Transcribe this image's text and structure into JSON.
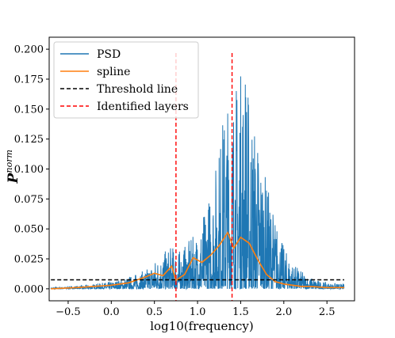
{
  "chart_data": {
    "type": "line",
    "xlabel": "log10(frequency)",
    "ylabel_main": "P",
    "ylabel_sup": "norm",
    "xlim": [
      -0.72,
      2.82
    ],
    "ylim": [
      -0.01,
      0.21
    ],
    "xticks": [
      -0.5,
      0.0,
      0.5,
      1.0,
      1.5,
      2.0,
      2.5
    ],
    "xtick_labels": [
      "−0.5",
      "0.0",
      "0.5",
      "1.0",
      "1.5",
      "2.0",
      "2.5"
    ],
    "yticks": [
      0.0,
      0.025,
      0.05,
      0.075,
      0.1,
      0.125,
      0.15,
      0.175,
      0.2
    ],
    "ytick_labels": [
      "0.000",
      "0.025",
      "0.050",
      "0.075",
      "0.100",
      "0.125",
      "0.150",
      "0.175",
      "0.200"
    ],
    "grid": false,
    "legend_position": "top-left",
    "colors": {
      "psd": "#1f77b4",
      "spline": "#ff7f0e",
      "threshold": "#000000",
      "layers": "#ff0000"
    },
    "series": [
      {
        "name": "PSD",
        "style": "solid",
        "color": "#1f77b4",
        "envelope": {
          "x": [
            -0.7,
            -0.3,
            0.0,
            0.2,
            0.4,
            0.5,
            0.6,
            0.7,
            0.8,
            0.9,
            1.0,
            1.1,
            1.2,
            1.3,
            1.4,
            1.5,
            1.55,
            1.6,
            1.7,
            1.8,
            1.9,
            2.0,
            2.1,
            2.2,
            2.3,
            2.4,
            2.5,
            2.7
          ],
          "y": [
            0.001,
            0.003,
            0.006,
            0.01,
            0.016,
            0.024,
            0.03,
            0.036,
            0.032,
            0.04,
            0.048,
            0.07,
            0.1,
            0.15,
            0.17,
            0.185,
            0.205,
            0.16,
            0.13,
            0.09,
            0.06,
            0.035,
            0.022,
            0.015,
            0.01,
            0.007,
            0.005,
            0.004
          ]
        }
      },
      {
        "name": "spline",
        "style": "solid",
        "color": "#ff7f0e",
        "x": [
          -0.7,
          -0.4,
          -0.2,
          0.0,
          0.2,
          0.4,
          0.5,
          0.6,
          0.7,
          0.75,
          0.85,
          0.95,
          1.05,
          1.15,
          1.25,
          1.35,
          1.42,
          1.5,
          1.6,
          1.7,
          1.8,
          1.9,
          2.0,
          2.1,
          2.2,
          2.3,
          2.5,
          2.7
        ],
        "y": [
          0.0,
          0.001,
          0.002,
          0.003,
          0.005,
          0.01,
          0.013,
          0.011,
          0.019,
          0.007,
          0.012,
          0.026,
          0.022,
          0.028,
          0.036,
          0.047,
          0.034,
          0.043,
          0.038,
          0.024,
          0.012,
          0.006,
          0.004,
          0.003,
          0.002,
          0.002,
          0.001,
          0.001
        ]
      },
      {
        "name": "Threshold line",
        "style": "dashed",
        "color": "#000000",
        "x": [
          -0.7,
          2.7
        ],
        "y": [
          0.0075,
          0.0075
        ]
      },
      {
        "name": "Identified layers",
        "style": "dashed",
        "color": "#ff0000",
        "vlines_x": [
          0.75,
          1.4
        ]
      }
    ]
  }
}
